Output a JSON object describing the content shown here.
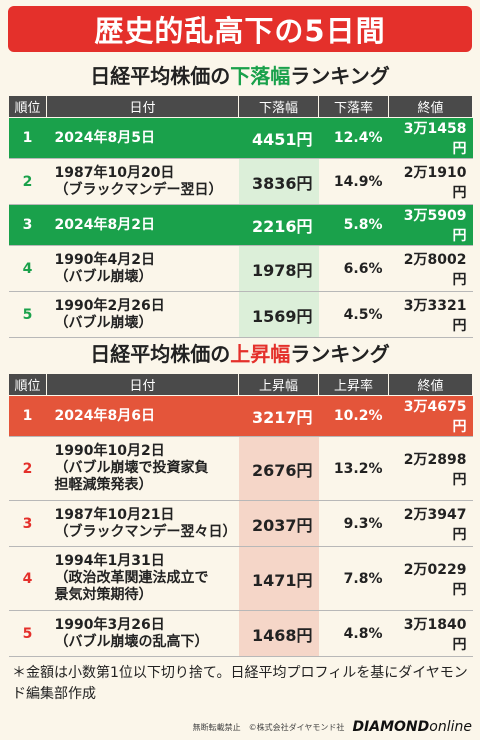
{
  "title": "歴史的乱高下の5日間",
  "decline_section": {
    "title_prefix": "日経平均株価の",
    "title_highlight": "下落幅",
    "title_suffix": "ランキング",
    "headers": [
      "順位",
      "日付",
      "下落幅",
      "下落率",
      "終値"
    ],
    "rows": [
      {
        "rank": "1",
        "date_line1": "2024年8月5日",
        "date_line2": "",
        "amount": "4451円",
        "rate": "12.4%",
        "close": "3万1458円",
        "highlight": true
      },
      {
        "rank": "2",
        "date_line1": "1987年10月20日",
        "date_line2": "（ブラックマンデー翌日）",
        "amount": "3836円",
        "rate": "14.9%",
        "close": "2万1910円",
        "highlight": false
      },
      {
        "rank": "3",
        "date_line1": "2024年8月2日",
        "date_line2": "",
        "amount": "2216円",
        "rate": "5.8%",
        "close": "3万5909円",
        "highlight": true
      },
      {
        "rank": "4",
        "date_line1": "1990年4月2日",
        "date_line2": "（バブル崩壊）",
        "amount": "1978円",
        "rate": "6.6%",
        "close": "2万8002円",
        "highlight": false
      },
      {
        "rank": "5",
        "date_line1": "1990年2月26日",
        "date_line2": "（バブル崩壊）",
        "amount": "1569円",
        "rate": "4.5%",
        "close": "3万3321円",
        "highlight": false
      }
    ]
  },
  "rise_section": {
    "title_prefix": "日経平均株価の",
    "title_highlight": "上昇幅",
    "title_suffix": "ランキング",
    "headers": [
      "順位",
      "日付",
      "上昇幅",
      "上昇率",
      "終値"
    ],
    "rows": [
      {
        "rank": "1",
        "date_line1": "2024年8月6日",
        "date_line2": "",
        "date_line3": "",
        "amount": "3217円",
        "rate": "10.2%",
        "close": "3万4675円",
        "highlight": true
      },
      {
        "rank": "2",
        "date_line1": "1990年10月2日",
        "date_line2": "（バブル崩壊で投資家負",
        "date_line3": "担軽減策発表）",
        "amount": "2676円",
        "rate": "13.2%",
        "close": "2万2898円",
        "highlight": false
      },
      {
        "rank": "3",
        "date_line1": "1987年10月21日",
        "date_line2": "（ブラックマンデー翌々日）",
        "date_line3": "",
        "amount": "2037円",
        "rate": "9.3%",
        "close": "2万3947円",
        "highlight": false
      },
      {
        "rank": "4",
        "date_line1": "1994年1月31日",
        "date_line2": "（政治改革関連法成立で",
        "date_line3": "景気対策期待）",
        "amount": "1471円",
        "rate": "7.8%",
        "close": "2万0229円",
        "highlight": false
      },
      {
        "rank": "5",
        "date_line1": "1990年3月26日",
        "date_line2": "（バブル崩壊の乱高下）",
        "date_line3": "",
        "amount": "1468円",
        "rate": "4.8%",
        "close": "3万1840円",
        "highlight": false
      }
    ]
  },
  "footnote": "＊金額は小数第1位以下切り捨て。日経平均プロフィルを基にダイヤモンド編集部作成",
  "credits": {
    "notice": "無断転載禁止　©株式会社ダイヤモンド社",
    "logo_main": "DIAMOND",
    "logo_sub": "online"
  }
}
